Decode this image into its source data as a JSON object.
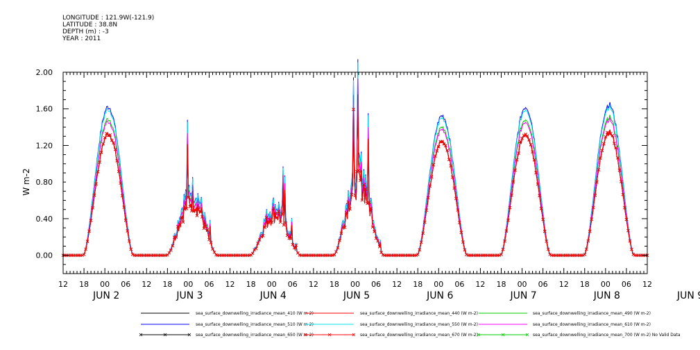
{
  "meta": [
    "LONGITUDE : 121.9W(-121.9)",
    "LATITUDE : 38.8N",
    "DEPTH (m) : -3",
    "YEAR : 2011"
  ],
  "chart_data": {
    "type": "line",
    "title": "",
    "ylabel": "W m-2",
    "xlabel": "",
    "ylim": [
      -0.2,
      2.0
    ],
    "yticks": [
      "2.00",
      "1.60",
      "1.20",
      "0.80",
      "0.40",
      "0.00"
    ],
    "xlim_hours": [
      0,
      168
    ],
    "x_hour_ticks": [
      "12",
      "18",
      "00",
      "06",
      "12",
      "18",
      "00",
      "06",
      "12",
      "18",
      "00",
      "06",
      "12",
      "18",
      "00",
      "06",
      "12",
      "18",
      "00",
      "06",
      "12",
      "18",
      "00",
      "06",
      "12",
      "18",
      "00",
      "06",
      "12"
    ],
    "x_day_labels": [
      "JUN  2",
      "JUN  3",
      "JUN  4",
      "JUN  5",
      "JUN  6",
      "JUN  7",
      "JUN  8",
      "JUN  9"
    ],
    "grid": false,
    "legend_position": "bottom",
    "series": [
      {
        "name": "sea_surface_downwelling_irradiance_mean_410 (W m-2)",
        "color": "#000000",
        "marker": "none",
        "scale": 1.0
      },
      {
        "name": "sea_surface_downwelling_irradiance_mean_440 (W m-2)",
        "color": "#ff0000",
        "marker": "none",
        "scale": 0.99
      },
      {
        "name": "sea_surface_downwelling_irradiance_mean_490 (W m-2)",
        "color": "#00cc00",
        "marker": "none",
        "scale": 1.12
      },
      {
        "name": "sea_surface_downwelling_irradiance_mean_510 (W m-2)",
        "color": "#0000ff",
        "marker": "none",
        "scale": 1.22
      },
      {
        "name": "sea_surface_downwelling_irradiance_mean_550 (W m-2)",
        "color": "#00e5ee",
        "marker": "none",
        "scale": 1.2
      },
      {
        "name": "sea_surface_downwelling_irradiance_mean_610 (W m-2)",
        "color": "#ff00ff",
        "marker": "none",
        "scale": 1.1
      },
      {
        "name": "sea_surface_downwelling_irradiance_mean_650 (W m-2)",
        "color": "#000000",
        "marker": "x",
        "scale": 1.0
      },
      {
        "name": "sea_surface_downwelling_irradiance_mean_670 (W m-2)",
        "color": "#ff0000",
        "marker": "x",
        "scale": 1.0
      },
      {
        "name": "sea_surface_downwelling_irradiance_mean_700 (W m-2) No Valid Data",
        "color": "#00cc00",
        "marker": "x",
        "scale": 0
      }
    ],
    "daily_peaks": [
      {
        "day": "JUN  2",
        "peak": 1.33
      },
      {
        "day": "JUN  3",
        "peak": 0.6
      },
      {
        "day": "JUN  4",
        "peak": 0.45
      },
      {
        "day": "JUN  5",
        "peak": 0.8
      },
      {
        "day": "JUN  6",
        "peak": 1.25
      },
      {
        "day": "JUN  7",
        "peak": 1.33
      },
      {
        "day": "JUN  8",
        "peak": 1.35
      }
    ]
  }
}
